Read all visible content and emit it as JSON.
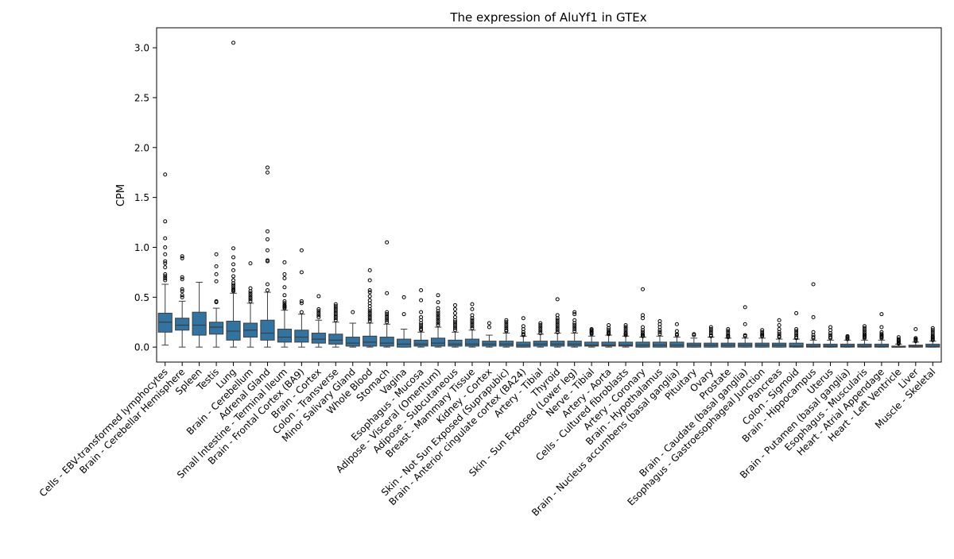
{
  "chart_data": {
    "type": "boxplot",
    "title": "The expression of AluYf1 in GTEx",
    "xlabel": "",
    "ylabel": "CPM",
    "ylim": [
      -0.15,
      3.2
    ],
    "yticks": [
      "0.0",
      "0.5",
      "1.0",
      "1.5",
      "2.0",
      "2.5",
      "3.0"
    ],
    "grid": false,
    "legend": "none",
    "box_color": "#3274a1",
    "line_color": "#3d3d3d",
    "categories": [
      "Cells - EBV-transformed lymphocytes",
      "Brain - Cerebellar Hemisphere",
      "Spleen",
      "Testis",
      "Lung",
      "Brain - Cerebellum",
      "Adrenal Gland",
      "Small Intestine - Terminal Ileum",
      "Brain - Frontal Cortex (BA9)",
      "Brain - Cortex",
      "Colon - Transverse",
      "Minor Salivary Gland",
      "Whole Blood",
      "Stomach",
      "Vagina",
      "Esophagus - Mucosa",
      "Adipose - Visceral (Omentum)",
      "Adipose - Subcutaneous",
      "Breast - Mammary Tissue",
      "Kidney - Cortex",
      "Skin - Not Sun Exposed (Suprapubic)",
      "Brain - Anterior cingulate cortex (BA24)",
      "Artery - Tibial",
      "Thyroid",
      "Skin - Sun Exposed (Lower leg)",
      "Nerve - Tibial",
      "Artery - Aorta",
      "Cells - Cultured fibroblasts",
      "Artery - Coronary",
      "Brain - Hypothalamus",
      "Brain - Nucleus accumbens (basal ganglia)",
      "Pituitary",
      "Ovary",
      "Prostate",
      "Brain - Caudate (basal ganglia)",
      "Esophagus - Gastroesophageal Junction",
      "Pancreas",
      "Colon - Sigmoid",
      "Brain - Hippocampus",
      "Uterus",
      "Brain - Putamen (basal ganglia)",
      "Esophagus - Muscularis",
      "Heart - Atrial Appendage",
      "Heart - Left Ventricle",
      "Liver",
      "Muscle - Skeletal"
    ],
    "boxes": [
      {
        "whisker_low": 0.02,
        "q1": 0.15,
        "median": 0.25,
        "q3": 0.34,
        "whisker_high": 0.63,
        "outliers": [
          1.73,
          1.26,
          1.09,
          1.0,
          0.93,
          0.86,
          0.84,
          0.8,
          0.73,
          0.71,
          0.69,
          0.67
        ]
      },
      {
        "whisker_low": 0.0,
        "q1": 0.17,
        "median": 0.22,
        "q3": 0.29,
        "whisker_high": 0.46,
        "outliers": [
          0.91,
          0.89,
          0.7,
          0.68,
          0.58,
          0.56,
          0.52,
          0.5
        ]
      },
      {
        "whisker_low": 0.0,
        "q1": 0.12,
        "median": 0.22,
        "q3": 0.35,
        "whisker_high": 0.65,
        "outliers": []
      },
      {
        "whisker_low": 0.0,
        "q1": 0.13,
        "median": 0.2,
        "q3": 0.25,
        "whisker_high": 0.39,
        "outliers": [
          0.93,
          0.81,
          0.73,
          0.66,
          0.46,
          0.45
        ]
      },
      {
        "whisker_low": 0.0,
        "q1": 0.07,
        "median": 0.16,
        "q3": 0.26,
        "whisker_high": 0.54,
        "outliers": [
          3.05,
          0.99,
          0.9,
          0.83,
          0.77,
          0.71,
          0.67,
          0.64,
          0.62,
          0.6,
          0.58,
          0.57,
          0.56
        ]
      },
      {
        "whisker_low": 0.0,
        "q1": 0.1,
        "median": 0.17,
        "q3": 0.24,
        "whisker_high": 0.44,
        "outliers": [
          0.84,
          0.59,
          0.56,
          0.54,
          0.52,
          0.5,
          0.48,
          0.46
        ]
      },
      {
        "whisker_low": 0.0,
        "q1": 0.07,
        "median": 0.14,
        "q3": 0.27,
        "whisker_high": 0.55,
        "outliers": [
          1.8,
          1.75,
          1.16,
          1.08,
          0.97,
          0.87,
          0.86,
          0.63,
          0.57
        ]
      },
      {
        "whisker_low": 0.0,
        "q1": 0.05,
        "median": 0.1,
        "q3": 0.18,
        "whisker_high": 0.37,
        "outliers": [
          0.85,
          0.73,
          0.69,
          0.6,
          0.52,
          0.46,
          0.44,
          0.42,
          0.41,
          0.4,
          0.39
        ]
      },
      {
        "whisker_low": 0.0,
        "q1": 0.05,
        "median": 0.1,
        "q3": 0.17,
        "whisker_high": 0.33,
        "outliers": [
          0.97,
          0.75,
          0.46,
          0.44,
          0.35
        ]
      },
      {
        "whisker_low": 0.0,
        "q1": 0.04,
        "median": 0.08,
        "q3": 0.14,
        "whisker_high": 0.27,
        "outliers": [
          0.51,
          0.38,
          0.36,
          0.34,
          0.32,
          0.3
        ]
      },
      {
        "whisker_low": 0.0,
        "q1": 0.03,
        "median": 0.07,
        "q3": 0.13,
        "whisker_high": 0.25,
        "outliers": [
          0.43,
          0.41,
          0.39,
          0.37,
          0.35,
          0.33,
          0.31,
          0.29,
          0.27
        ]
      },
      {
        "whisker_low": 0.0,
        "q1": 0.01,
        "median": 0.04,
        "q3": 0.1,
        "whisker_high": 0.24,
        "outliers": [
          0.35
        ]
      },
      {
        "whisker_low": 0.0,
        "q1": 0.01,
        "median": 0.05,
        "q3": 0.11,
        "whisker_high": 0.24,
        "outliers": [
          0.77,
          0.67,
          0.57,
          0.55,
          0.51,
          0.47,
          0.44,
          0.41,
          0.38,
          0.36,
          0.34,
          0.32,
          0.3,
          0.28,
          0.26
        ]
      },
      {
        "whisker_low": 0.0,
        "q1": 0.01,
        "median": 0.04,
        "q3": 0.1,
        "whisker_high": 0.23,
        "outliers": [
          1.05,
          0.54,
          0.35,
          0.33,
          0.31,
          0.29,
          0.27,
          0.25
        ]
      },
      {
        "whisker_low": 0.0,
        "q1": 0.0,
        "median": 0.03,
        "q3": 0.08,
        "whisker_high": 0.18,
        "outliers": [
          0.5,
          0.33
        ]
      },
      {
        "whisker_low": 0.0,
        "q1": 0.01,
        "median": 0.03,
        "q3": 0.07,
        "whisker_high": 0.15,
        "outliers": [
          0.57,
          0.47,
          0.35,
          0.3,
          0.27,
          0.24,
          0.22,
          0.2,
          0.18,
          0.17
        ]
      },
      {
        "whisker_low": 0.0,
        "q1": 0.01,
        "median": 0.04,
        "q3": 0.09,
        "whisker_high": 0.2,
        "outliers": [
          0.52,
          0.45,
          0.39,
          0.36,
          0.34,
          0.32,
          0.3,
          0.28,
          0.26,
          0.24,
          0.22
        ]
      },
      {
        "whisker_low": 0.0,
        "q1": 0.01,
        "median": 0.03,
        "q3": 0.07,
        "whisker_high": 0.15,
        "outliers": [
          0.42,
          0.38,
          0.34,
          0.3,
          0.27,
          0.25,
          0.23,
          0.21,
          0.19,
          0.17
        ]
      },
      {
        "whisker_low": 0.0,
        "q1": 0.01,
        "median": 0.03,
        "q3": 0.08,
        "whisker_high": 0.17,
        "outliers": [
          0.43,
          0.38,
          0.32,
          0.29,
          0.27,
          0.25,
          0.23,
          0.21,
          0.19
        ]
      },
      {
        "whisker_low": 0.0,
        "q1": 0.01,
        "median": 0.03,
        "q3": 0.06,
        "whisker_high": 0.12,
        "outliers": [
          0.24,
          0.2
        ]
      },
      {
        "whisker_low": 0.0,
        "q1": 0.01,
        "median": 0.03,
        "q3": 0.06,
        "whisker_high": 0.14,
        "outliers": [
          0.27,
          0.25,
          0.23,
          0.21,
          0.19,
          0.17,
          0.16
        ]
      },
      {
        "whisker_low": 0.0,
        "q1": 0.0,
        "median": 0.02,
        "q3": 0.05,
        "whisker_high": 0.11,
        "outliers": [
          0.29,
          0.21,
          0.18,
          0.15,
          0.13,
          0.12
        ]
      },
      {
        "whisker_low": 0.0,
        "q1": 0.01,
        "median": 0.03,
        "q3": 0.06,
        "whisker_high": 0.13,
        "outliers": [
          0.24,
          0.22,
          0.2,
          0.18,
          0.16,
          0.14
        ]
      },
      {
        "whisker_low": 0.0,
        "q1": 0.01,
        "median": 0.03,
        "q3": 0.06,
        "whisker_high": 0.14,
        "outliers": [
          0.48,
          0.32,
          0.29,
          0.27,
          0.25,
          0.23,
          0.21,
          0.19,
          0.17,
          0.15
        ]
      },
      {
        "whisker_low": 0.0,
        "q1": 0.01,
        "median": 0.03,
        "q3": 0.06,
        "whisker_high": 0.14,
        "outliers": [
          0.35,
          0.33,
          0.27,
          0.24,
          0.22,
          0.2,
          0.18,
          0.16
        ]
      },
      {
        "whisker_low": 0.0,
        "q1": 0.01,
        "median": 0.02,
        "q3": 0.05,
        "whisker_high": 0.11,
        "outliers": [
          0.18,
          0.17,
          0.16,
          0.15,
          0.14,
          0.13
        ]
      },
      {
        "whisker_low": 0.0,
        "q1": 0.01,
        "median": 0.02,
        "q3": 0.05,
        "whisker_high": 0.12,
        "outliers": [
          0.22,
          0.19,
          0.17,
          0.15,
          0.14,
          0.13
        ]
      },
      {
        "whisker_low": 0.0,
        "q1": 0.01,
        "median": 0.02,
        "q3": 0.05,
        "whisker_high": 0.11,
        "outliers": [
          0.22,
          0.2,
          0.18,
          0.16,
          0.14,
          0.13,
          0.12
        ]
      },
      {
        "whisker_low": 0.0,
        "q1": 0.0,
        "median": 0.02,
        "q3": 0.05,
        "whisker_high": 0.1,
        "outliers": [
          0.58,
          0.32,
          0.29,
          0.2,
          0.17,
          0.15,
          0.13,
          0.12,
          0.11
        ]
      },
      {
        "whisker_low": 0.0,
        "q1": 0.0,
        "median": 0.02,
        "q3": 0.05,
        "whisker_high": 0.11,
        "outliers": [
          0.26,
          0.23,
          0.2,
          0.17,
          0.15,
          0.13
        ]
      },
      {
        "whisker_low": 0.0,
        "q1": 0.0,
        "median": 0.02,
        "q3": 0.05,
        "whisker_high": 0.1,
        "outliers": [
          0.23,
          0.16,
          0.13,
          0.12
        ]
      },
      {
        "whisker_low": 0.0,
        "q1": 0.0,
        "median": 0.02,
        "q3": 0.04,
        "whisker_high": 0.09,
        "outliers": [
          0.13,
          0.12
        ]
      },
      {
        "whisker_low": 0.0,
        "q1": 0.0,
        "median": 0.02,
        "q3": 0.04,
        "whisker_high": 0.1,
        "outliers": [
          0.2,
          0.18,
          0.16,
          0.14,
          0.12,
          0.11
        ]
      },
      {
        "whisker_low": 0.0,
        "q1": 0.0,
        "median": 0.02,
        "q3": 0.04,
        "whisker_high": 0.09,
        "outliers": [
          0.18,
          0.16,
          0.14,
          0.12,
          0.11,
          0.1
        ]
      },
      {
        "whisker_low": 0.0,
        "q1": 0.0,
        "median": 0.02,
        "q3": 0.04,
        "whisker_high": 0.09,
        "outliers": [
          0.4,
          0.23,
          0.12,
          0.11
        ]
      },
      {
        "whisker_low": 0.0,
        "q1": 0.0,
        "median": 0.02,
        "q3": 0.04,
        "whisker_high": 0.09,
        "outliers": [
          0.17,
          0.15,
          0.13,
          0.12,
          0.11
        ]
      },
      {
        "whisker_low": 0.0,
        "q1": 0.0,
        "median": 0.02,
        "q3": 0.04,
        "whisker_high": 0.08,
        "outliers": [
          0.27,
          0.22,
          0.18,
          0.15,
          0.13,
          0.11,
          0.1
        ]
      },
      {
        "whisker_low": 0.0,
        "q1": 0.0,
        "median": 0.01,
        "q3": 0.04,
        "whisker_high": 0.08,
        "outliers": [
          0.34,
          0.18,
          0.16,
          0.14,
          0.12,
          0.1,
          0.09
        ]
      },
      {
        "whisker_low": 0.0,
        "q1": 0.0,
        "median": 0.01,
        "q3": 0.03,
        "whisker_high": 0.07,
        "outliers": [
          0.63,
          0.3,
          0.15,
          0.12,
          0.1,
          0.09
        ]
      },
      {
        "whisker_low": 0.0,
        "q1": 0.0,
        "median": 0.01,
        "q3": 0.03,
        "whisker_high": 0.07,
        "outliers": [
          0.2,
          0.17,
          0.14,
          0.12,
          0.1,
          0.09
        ]
      },
      {
        "whisker_low": 0.0,
        "q1": 0.0,
        "median": 0.01,
        "q3": 0.03,
        "whisker_high": 0.07,
        "outliers": [
          0.11,
          0.1,
          0.09,
          0.08
        ]
      },
      {
        "whisker_low": 0.0,
        "q1": 0.0,
        "median": 0.01,
        "q3": 0.03,
        "whisker_high": 0.07,
        "outliers": [
          0.21,
          0.19,
          0.17,
          0.15,
          0.13,
          0.12,
          0.11,
          0.1,
          0.09
        ]
      },
      {
        "whisker_low": 0.0,
        "q1": 0.0,
        "median": 0.01,
        "q3": 0.03,
        "whisker_high": 0.07,
        "outliers": [
          0.33,
          0.2,
          0.15,
          0.13,
          0.12,
          0.11,
          0.1,
          0.09
        ]
      },
      {
        "whisker_low": 0.0,
        "q1": 0.0,
        "median": 0.0,
        "q3": 0.01,
        "whisker_high": 0.03,
        "outliers": [
          0.1,
          0.08,
          0.07,
          0.06,
          0.05,
          0.04,
          0.035
        ]
      },
      {
        "whisker_low": 0.0,
        "q1": 0.0,
        "median": 0.01,
        "q3": 0.02,
        "whisker_high": 0.05,
        "outliers": [
          0.18,
          0.09,
          0.08,
          0.07,
          0.06
        ]
      },
      {
        "whisker_low": 0.0,
        "q1": 0.0,
        "median": 0.01,
        "q3": 0.03,
        "whisker_high": 0.06,
        "outliers": [
          0.19,
          0.17,
          0.15,
          0.13,
          0.11,
          0.1,
          0.09,
          0.08,
          0.07
        ]
      }
    ]
  }
}
